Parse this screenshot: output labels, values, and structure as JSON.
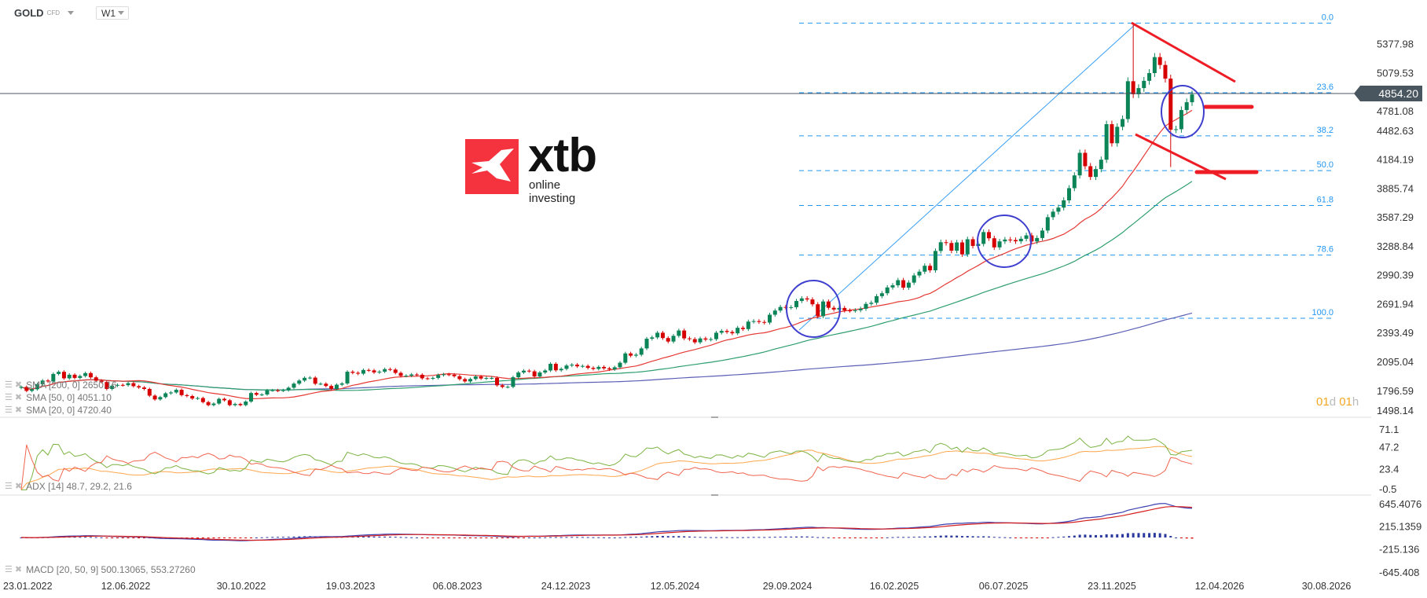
{
  "header": {
    "symbol": "GOLD",
    "instrument_type": "CFD",
    "timeframe": "W1"
  },
  "logo": {
    "brand": "xtb",
    "tagline": "online investing",
    "color": "#f5333f"
  },
  "current_price": "4854.20",
  "timer": {
    "days": "01",
    "d_unit": "d",
    "hours": "01",
    "h_unit": "h"
  },
  "legend": {
    "sma200": "SMA [200, 0] 2650.16",
    "sma50": "SMA [50, 0] 4051.10",
    "sma20": "SMA [20, 0] 4720.40",
    "adx": "ADX [14] 48.7, 29.2, 21.6",
    "macd": "MACD [20, 50, 9] 500.13065, 553.27260"
  },
  "colors": {
    "up": "#0b8457",
    "down": "#d60000",
    "sma20": "#e53935",
    "sma50": "#2e9e6e",
    "sma200": "#5b5fb5",
    "fib": "#2196f3",
    "adx": "#ffa64d",
    "di_plus": "#7cb342",
    "di_minus": "#f0654f",
    "drawing_red": "#ee1c25",
    "drawing_circle": "#3f3fcf"
  },
  "chart_data": {
    "type": "candlestick",
    "interval": "weekly",
    "price_axis_ticks": [
      "5377.98",
      "5079.53",
      "4781.08",
      "4482.63",
      "4184.19",
      "3885.74",
      "3587.29",
      "3288.84",
      "2990.39",
      "2691.94",
      "2393.49",
      "2095.04",
      "1796.59",
      "1498.14"
    ],
    "date_ticks": [
      "23.01.2022",
      "12.06.2022",
      "30.10.2022",
      "19.03.2023",
      "06.08.2023",
      "24.12.2023",
      "12.05.2024",
      "29.09.2024",
      "16.02.2025",
      "06.07.2025",
      "23.11.2025",
      "12.04.2026",
      "30.08.2026"
    ],
    "closes": [
      1832,
      1791,
      1808,
      1860,
      1898,
      1889,
      1966,
      1988,
      1921,
      1958,
      1925,
      1945,
      1975,
      1931,
      1896,
      1883,
      1811,
      1845,
      1853,
      1850,
      1871,
      1840,
      1826,
      1811,
      1742,
      1703,
      1727,
      1766,
      1775,
      1802,
      1747,
      1738,
      1712,
      1717,
      1675,
      1644,
      1660,
      1709,
      1694,
      1644,
      1656,
      1644,
      1681,
      1769,
      1751,
      1754,
      1797,
      1797,
      1793,
      1798,
      1824,
      1866,
      1898,
      1926,
      1928,
      1865,
      1865,
      1842,
      1811,
      1855,
      1868,
      1989,
      1978,
      1969,
      2007,
      2003,
      1982,
      1990,
      2016,
      2011,
      1977,
      1946,
      1948,
      1961,
      1958,
      1921,
      1919,
      1925,
      1955,
      1962,
      1959,
      1943,
      1913,
      1889,
      1914,
      1940,
      1919,
      1924,
      1925,
      1849,
      1832,
      1833,
      1932,
      1981,
      2000,
      1993,
      1940,
      1981,
      2002,
      2071,
      2004,
      2019,
      2053,
      2062,
      2045,
      2049,
      2029,
      2018,
      2039,
      2024,
      2013,
      2035,
      2082,
      2178,
      2155,
      2165,
      2230,
      2330,
      2344,
      2392,
      2337,
      2301,
      2360,
      2415,
      2334,
      2326,
      2293,
      2333,
      2321,
      2326,
      2392,
      2411,
      2400,
      2386,
      2443,
      2430,
      2507,
      2512,
      2503,
      2497,
      2578,
      2621,
      2658,
      2653,
      2656,
      2720,
      2747,
      2736,
      2686,
      2563,
      2715,
      2650,
      2632,
      2648,
      2622,
      2620,
      2624,
      2640,
      2690,
      2702,
      2770,
      2800,
      2860,
      2882,
      2935,
      2858,
      2910,
      2984,
      3023,
      3084,
      3037,
      3237,
      3327,
      3319,
      3240,
      3325,
      3202,
      3358,
      3289,
      3310,
      3432,
      3368,
      3274,
      3336,
      3355,
      3350,
      3337,
      3363,
      3398,
      3335,
      3371,
      3448,
      3586,
      3643,
      3685,
      3760,
      3886,
      4018,
      4251,
      4113,
      4002,
      4083,
      4180,
      4547,
      4350,
      4520,
      4600,
      4991,
      4856,
      4920,
      4995,
      5075,
      5240,
      5159,
      5018,
      4490,
      4495,
      4693,
      4774,
      4854.2
    ],
    "fibonacci": {
      "high": 5592,
      "low": 2542,
      "levels": [
        "0.0",
        "23.6",
        "38.2",
        "50.0",
        "61.8",
        "78.6",
        "100.0"
      ]
    },
    "indicators": {
      "sma_periods": [
        20,
        50,
        200
      ],
      "adx": {
        "period": 14,
        "axis_ticks": [
          "71.1",
          "47.2",
          "23.4",
          "-0.5"
        ],
        "range": [
          -0.5,
          71.1
        ]
      },
      "macd": {
        "fast": 20,
        "slow": 50,
        "signal": 9,
        "axis_ticks": [
          "645.4076",
          "215.1359",
          "-215.136",
          "-645.408"
        ],
        "range": [
          -645.408,
          645.4076
        ]
      }
    },
    "price_range": [
      1498.14,
      5377.98
    ]
  }
}
